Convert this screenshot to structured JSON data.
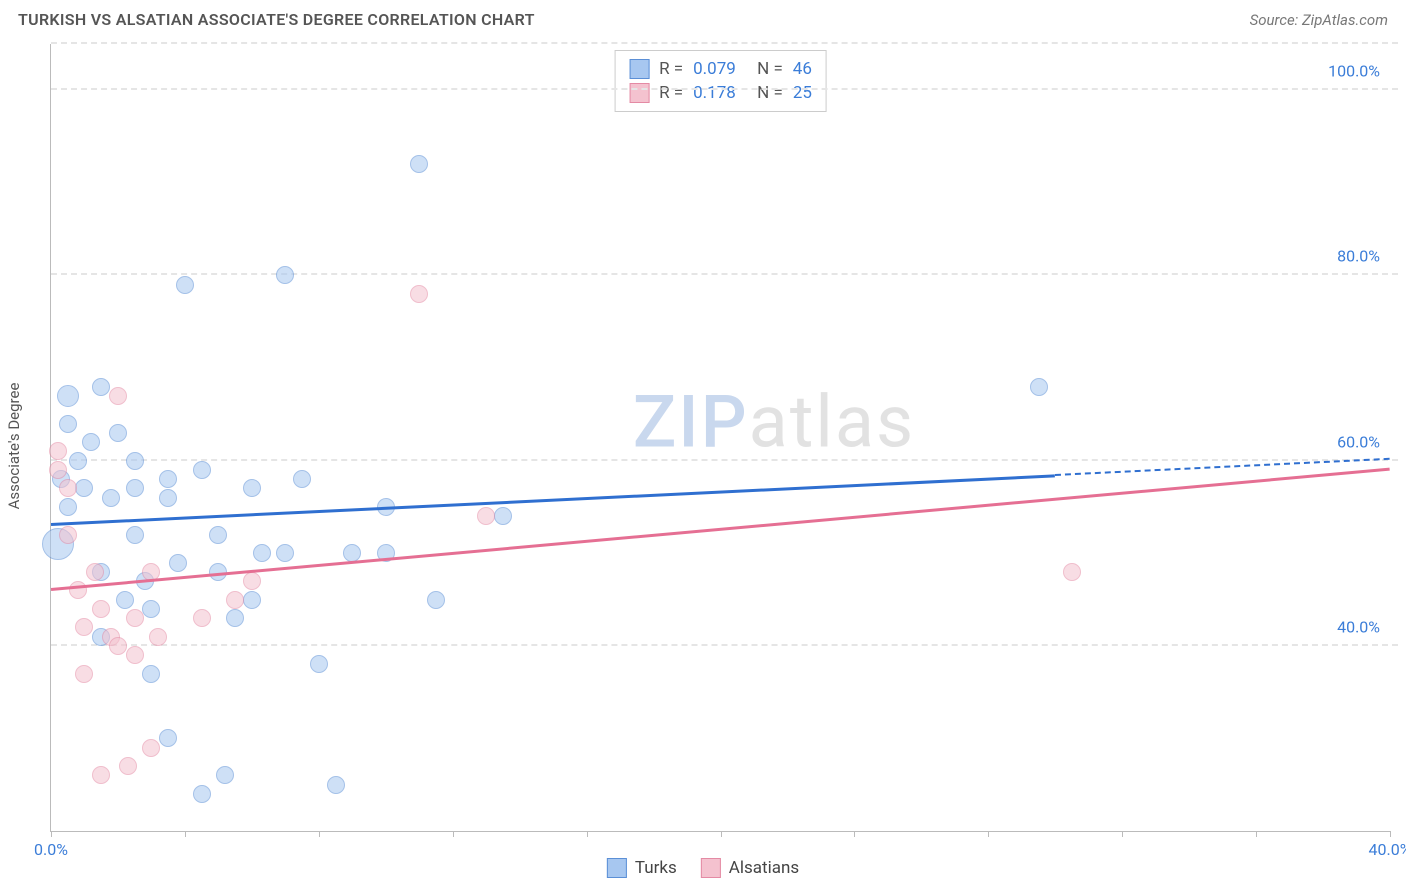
{
  "title": "TURKISH VS ALSATIAN ASSOCIATE'S DEGREE CORRELATION CHART",
  "source_label": "Source: ZipAtlas.com",
  "yaxis_label": "Associate's Degree",
  "watermark": {
    "part1": "ZIP",
    "part2": "atlas"
  },
  "chart": {
    "type": "scatter",
    "xlim": [
      0,
      40
    ],
    "ylim": [
      20,
      105
    ],
    "x_ticks": [
      0,
      4,
      8,
      12,
      16,
      20,
      24,
      28,
      32,
      36,
      40
    ],
    "x_tick_labels": {
      "0": "0.0%",
      "40": "40.0%"
    },
    "y_gridlines": [
      40,
      60,
      80,
      100,
      105
    ],
    "y_tick_labels": {
      "40": "40.0%",
      "60": "60.0%",
      "80": "80.0%",
      "100": "100.0%"
    },
    "background_color": "#ffffff",
    "grid_color": "#e5e5e5",
    "axis_color": "#bbbbbb",
    "tick_label_color": "#3b7dd8",
    "marker_radius": 9,
    "marker_opacity": 0.55,
    "series": [
      {
        "name": "Turks",
        "color_fill": "#a7c7f0",
        "color_stroke": "#5b8fd6",
        "R": "0.079",
        "N": "46",
        "trend": {
          "x1": 0,
          "y1": 53,
          "x2": 40,
          "y2": 60,
          "solid_until_x": 30,
          "color": "#2f6fd0"
        },
        "points": [
          {
            "x": 0.3,
            "y": 58
          },
          {
            "x": 0.5,
            "y": 64
          },
          {
            "x": 0.5,
            "y": 67,
            "r": 11
          },
          {
            "x": 0.8,
            "y": 60
          },
          {
            "x": 0.2,
            "y": 51,
            "r": 16
          },
          {
            "x": 0.5,
            "y": 55
          },
          {
            "x": 1.0,
            "y": 57
          },
          {
            "x": 1.2,
            "y": 62
          },
          {
            "x": 1.5,
            "y": 68
          },
          {
            "x": 1.8,
            "y": 56
          },
          {
            "x": 1.5,
            "y": 41
          },
          {
            "x": 1.5,
            "y": 48
          },
          {
            "x": 2.0,
            "y": 63
          },
          {
            "x": 2.2,
            "y": 45
          },
          {
            "x": 2.5,
            "y": 60
          },
          {
            "x": 2.5,
            "y": 57
          },
          {
            "x": 2.5,
            "y": 52
          },
          {
            "x": 2.8,
            "y": 47
          },
          {
            "x": 3.0,
            "y": 44
          },
          {
            "x": 3.0,
            "y": 37
          },
          {
            "x": 3.5,
            "y": 58
          },
          {
            "x": 3.5,
            "y": 56
          },
          {
            "x": 3.5,
            "y": 30
          },
          {
            "x": 3.8,
            "y": 49
          },
          {
            "x": 4.0,
            "y": 79
          },
          {
            "x": 4.5,
            "y": 24
          },
          {
            "x": 4.5,
            "y": 59
          },
          {
            "x": 5.0,
            "y": 48
          },
          {
            "x": 5.0,
            "y": 52
          },
          {
            "x": 5.2,
            "y": 26
          },
          {
            "x": 5.5,
            "y": 43
          },
          {
            "x": 6.0,
            "y": 57
          },
          {
            "x": 6.0,
            "y": 45
          },
          {
            "x": 6.3,
            "y": 50
          },
          {
            "x": 7.0,
            "y": 80
          },
          {
            "x": 7.0,
            "y": 50
          },
          {
            "x": 7.5,
            "y": 58
          },
          {
            "x": 8.0,
            "y": 38
          },
          {
            "x": 8.5,
            "y": 25
          },
          {
            "x": 9.0,
            "y": 50
          },
          {
            "x": 10.0,
            "y": 55
          },
          {
            "x": 10.0,
            "y": 50
          },
          {
            "x": 11.0,
            "y": 92
          },
          {
            "x": 11.5,
            "y": 45
          },
          {
            "x": 13.5,
            "y": 54
          },
          {
            "x": 29.5,
            "y": 68
          }
        ]
      },
      {
        "name": "Alsatians",
        "color_fill": "#f4c2cf",
        "color_stroke": "#e48aa4",
        "R": "0.178",
        "N": "25",
        "trend": {
          "x1": 0,
          "y1": 46,
          "x2": 40,
          "y2": 59,
          "solid_until_x": 40,
          "color": "#e56f93"
        },
        "points": [
          {
            "x": 0.2,
            "y": 61
          },
          {
            "x": 0.2,
            "y": 59
          },
          {
            "x": 0.5,
            "y": 57
          },
          {
            "x": 0.5,
            "y": 52
          },
          {
            "x": 0.8,
            "y": 46
          },
          {
            "x": 1.0,
            "y": 42
          },
          {
            "x": 1.0,
            "y": 37
          },
          {
            "x": 1.3,
            "y": 48
          },
          {
            "x": 1.5,
            "y": 44
          },
          {
            "x": 1.5,
            "y": 26
          },
          {
            "x": 1.8,
            "y": 41
          },
          {
            "x": 2.0,
            "y": 67
          },
          {
            "x": 2.0,
            "y": 40
          },
          {
            "x": 2.3,
            "y": 27
          },
          {
            "x": 2.5,
            "y": 43
          },
          {
            "x": 2.5,
            "y": 39
          },
          {
            "x": 3.0,
            "y": 48
          },
          {
            "x": 3.2,
            "y": 41
          },
          {
            "x": 3.0,
            "y": 29
          },
          {
            "x": 4.5,
            "y": 43
          },
          {
            "x": 5.5,
            "y": 45
          },
          {
            "x": 6.0,
            "y": 47
          },
          {
            "x": 11.0,
            "y": 78
          },
          {
            "x": 13.0,
            "y": 54
          },
          {
            "x": 30.5,
            "y": 48
          }
        ]
      }
    ]
  },
  "legend_bottom": [
    {
      "label": "Turks",
      "fill": "#a7c7f0",
      "stroke": "#5b8fd6"
    },
    {
      "label": "Alsatians",
      "fill": "#f4c2cf",
      "stroke": "#e48aa4"
    }
  ]
}
